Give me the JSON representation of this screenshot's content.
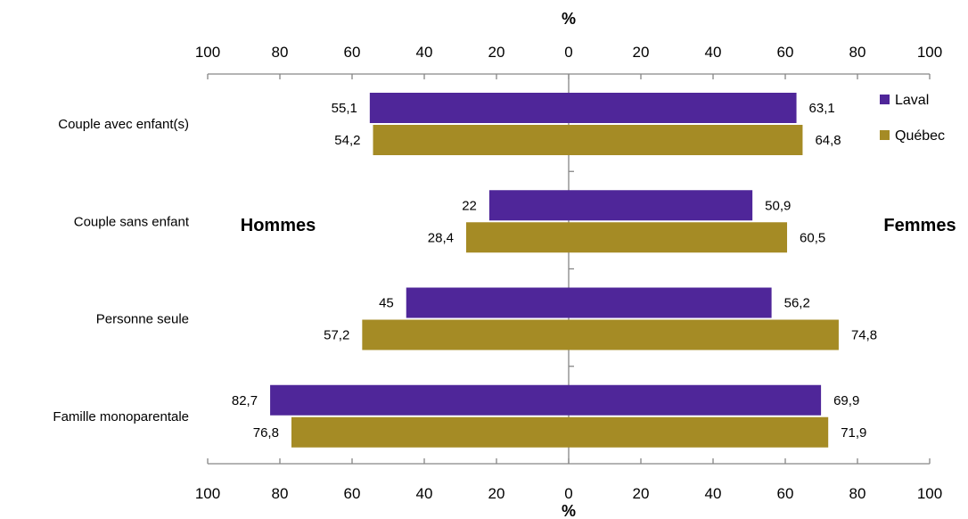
{
  "chart_data": {
    "type": "bar",
    "orientation": "horizontal",
    "layout": "diverging",
    "categories": [
      "Couple avec enfant(s)",
      "Couple sans enfant",
      "Personne seule",
      "Famille monoparentale"
    ],
    "series": [
      {
        "name": "Laval",
        "color": "#4f2699",
        "hommes": [
          55.1,
          22,
          45,
          82.7
        ],
        "femmes": [
          63.1,
          50.9,
          56.2,
          69.9
        ]
      },
      {
        "name": "Québec",
        "color": "#a58b25",
        "hommes": [
          54.2,
          28.4,
          57.2,
          76.8
        ],
        "femmes": [
          64.8,
          60.5,
          74.8,
          71.9
        ]
      }
    ],
    "value_labels": {
      "hommes": [
        [
          "55,1",
          "22",
          "45",
          "82,7"
        ],
        [
          "54,2",
          "28,4",
          "57,2",
          "76,8"
        ]
      ],
      "femmes": [
        [
          "63,1",
          "50,9",
          "56,2",
          "69,9"
        ],
        [
          "64,8",
          "60,5",
          "74,8",
          "71,9"
        ]
      ]
    },
    "left_label": "Hommes",
    "right_label": "Femmes",
    "axis_unit": "%",
    "xlim": [
      -100,
      100
    ],
    "tick_labels": [
      "100",
      "80",
      "60",
      "40",
      "20",
      "0",
      "20",
      "40",
      "60",
      "80",
      "100"
    ],
    "legend_position": "top-right",
    "grid": false
  }
}
